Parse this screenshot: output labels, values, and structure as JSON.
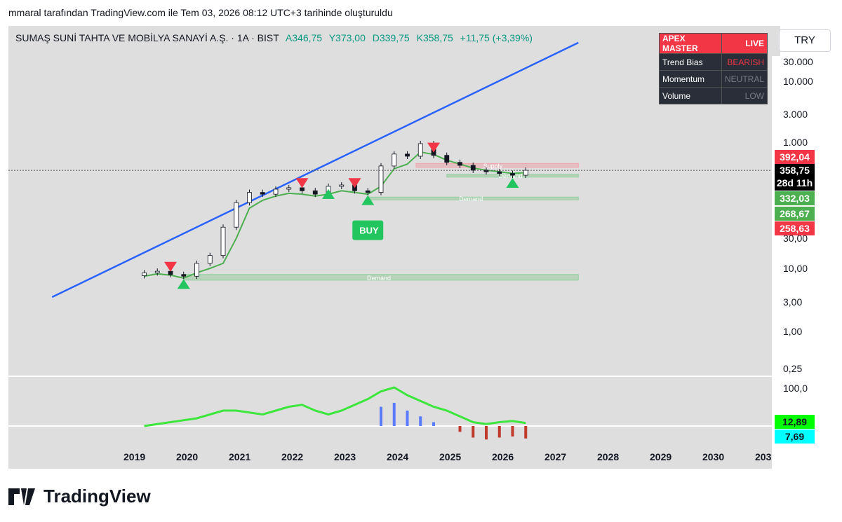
{
  "caption": "mmaral tarafından TradingView.com ile Tem 03, 2026 08:12 UTC+3 tarihinde oluşturuldu",
  "currency": "TRY",
  "brand": "TradingView",
  "header": {
    "symbol": "SUMAŞ SUNİ TAHTA VE MOBİLYA SANAYİ A.Ş. · 1A · BIST",
    "open": "A346,75",
    "high": "Y373,00",
    "low": "D339,75",
    "close": "K358,75",
    "change": "+11,75 (+3,39%)"
  },
  "panel": {
    "title": "APEX MASTER",
    "status": "LIVE",
    "rows": [
      {
        "label": "Trend Bias",
        "value": "BEARISH",
        "color": "#f23645"
      },
      {
        "label": "Momentum",
        "value": "NEUTRAL",
        "color": "#787b86"
      },
      {
        "label": "Volume",
        "value": "LOW",
        "color": "#787b86"
      }
    ]
  },
  "buy_label": "BUY",
  "zone_labels": {
    "supply": "Supply",
    "demand": "Demand"
  },
  "price_scale": {
    "ticks": [
      "30.000",
      "10.000",
      "3.000",
      "1.000",
      "30,00",
      "10,00",
      "3,00",
      "1,00",
      "0,25"
    ],
    "current_price": "358,75",
    "countdown": "28d 11h",
    "flags": [
      {
        "value": "392,04",
        "color": "#f23645"
      },
      {
        "value": "332,03",
        "color": "#4caf50"
      },
      {
        "value": "268,67",
        "color": "#4caf50"
      },
      {
        "value": "258,63",
        "color": "#f23645"
      }
    ]
  },
  "indicator_scale": {
    "top": "100,0",
    "flags": [
      {
        "value": "12,89",
        "color": "#00ff00"
      },
      {
        "value": "7,69",
        "color": "#00ffff"
      }
    ]
  },
  "x_axis": [
    "2019",
    "2020",
    "2021",
    "2022",
    "2023",
    "2024",
    "2025",
    "2026",
    "2027",
    "2028",
    "2029",
    "2030",
    "203"
  ],
  "colors": {
    "up": "#089981",
    "down": "#f23645",
    "trend_line": "#2962ff",
    "bull_cloud": "#4caf50",
    "bear_cloud": "#f23645"
  },
  "chart_data": {
    "type": "candlestick",
    "scale": "log",
    "interval": "1M",
    "ylim": [
      0.2,
      50000
    ],
    "x": [
      "2019-03",
      "2019-06",
      "2019-09",
      "2019-12",
      "2020-03",
      "2020-06",
      "2020-09",
      "2020-12",
      "2021-03",
      "2021-06",
      "2021-09",
      "2021-12",
      "2022-03",
      "2022-06",
      "2022-09",
      "2022-12",
      "2023-03",
      "2023-06",
      "2023-09",
      "2023-12",
      "2024-03",
      "2024-06",
      "2024-09",
      "2024-12",
      "2025-03",
      "2025-06",
      "2025-09",
      "2025-12",
      "2026-03",
      "2026-06"
    ],
    "close": [
      8.5,
      9.0,
      8.0,
      7.5,
      12,
      16,
      45,
      110,
      160,
      150,
      180,
      190,
      170,
      150,
      200,
      210,
      170,
      160,
      420,
      650,
      600,
      950,
      620,
      480,
      430,
      360,
      340,
      320,
      300,
      358.75
    ],
    "series": [
      {
        "name": "Upper band",
        "values": [
          7.5,
          8.2,
          7.8,
          7.0,
          8.5,
          10,
          12,
          30,
          90,
          120,
          140,
          155,
          150,
          140,
          150,
          170,
          160,
          150,
          200,
          380,
          450,
          700,
          640,
          520,
          450,
          390,
          360,
          340,
          320,
          330
        ]
      },
      {
        "name": "Oscillator",
        "values": [
          0,
          5,
          10,
          15,
          20,
          30,
          40,
          40,
          35,
          30,
          40,
          50,
          55,
          40,
          30,
          40,
          55,
          70,
          90,
          100,
          80,
          65,
          50,
          40,
          25,
          10,
          5,
          10,
          12.89,
          7.69
        ]
      }
    ],
    "trendline": [
      {
        "x": "2017-06",
        "y": 3.5
      },
      {
        "x": "2027-06",
        "y": 38000
      }
    ],
    "zones": [
      {
        "label": "Supply",
        "from": "2024-05",
        "to": "2027-06",
        "low": 400,
        "high": 460
      },
      {
        "label": "Demand",
        "from": "2024-12",
        "to": "2027-06",
        "low": 290,
        "high": 310
      },
      {
        "label": "Demand",
        "from": "2023-06",
        "to": "2027-06",
        "low": 125,
        "high": 135
      },
      {
        "label": "Demand",
        "from": "2019-12",
        "to": "2027-06",
        "low": 6.5,
        "high": 8.0
      }
    ],
    "signals": [
      {
        "type": "sell",
        "x": "2019-09"
      },
      {
        "type": "buy",
        "x": "2019-12"
      },
      {
        "type": "sell",
        "x": "2022-03"
      },
      {
        "type": "buy",
        "x": "2022-09"
      },
      {
        "type": "sell",
        "x": "2023-03"
      },
      {
        "type": "buy",
        "x": "2023-06",
        "label": "BUY"
      },
      {
        "type": "sell",
        "x": "2024-09"
      },
      {
        "type": "buy",
        "x": "2026-03"
      }
    ]
  }
}
